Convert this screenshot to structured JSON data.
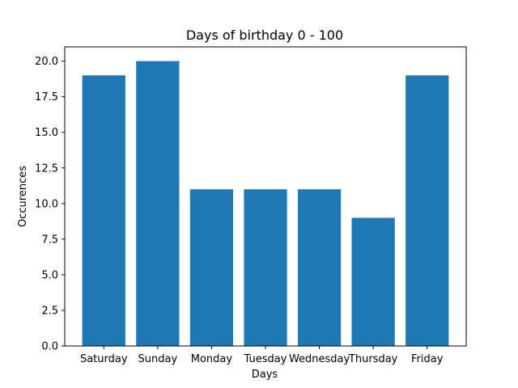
{
  "chart_data": {
    "type": "bar",
    "title": "Days of birthday 0 - 100",
    "xlabel": "Days",
    "ylabel": "Occurences",
    "categories": [
      "Saturday",
      "Sunday",
      "Monday",
      "Tuesday",
      "Wednesday",
      "Thursday",
      "Friday"
    ],
    "values": [
      19,
      20,
      11,
      11,
      11,
      9,
      19
    ],
    "ylim": [
      0,
      21
    ],
    "yticks": [
      "0.0",
      "2.5",
      "5.0",
      "7.5",
      "10.0",
      "12.5",
      "15.0",
      "17.5",
      "20.0"
    ],
    "grid": false,
    "bar_color": "#1f77b4"
  }
}
